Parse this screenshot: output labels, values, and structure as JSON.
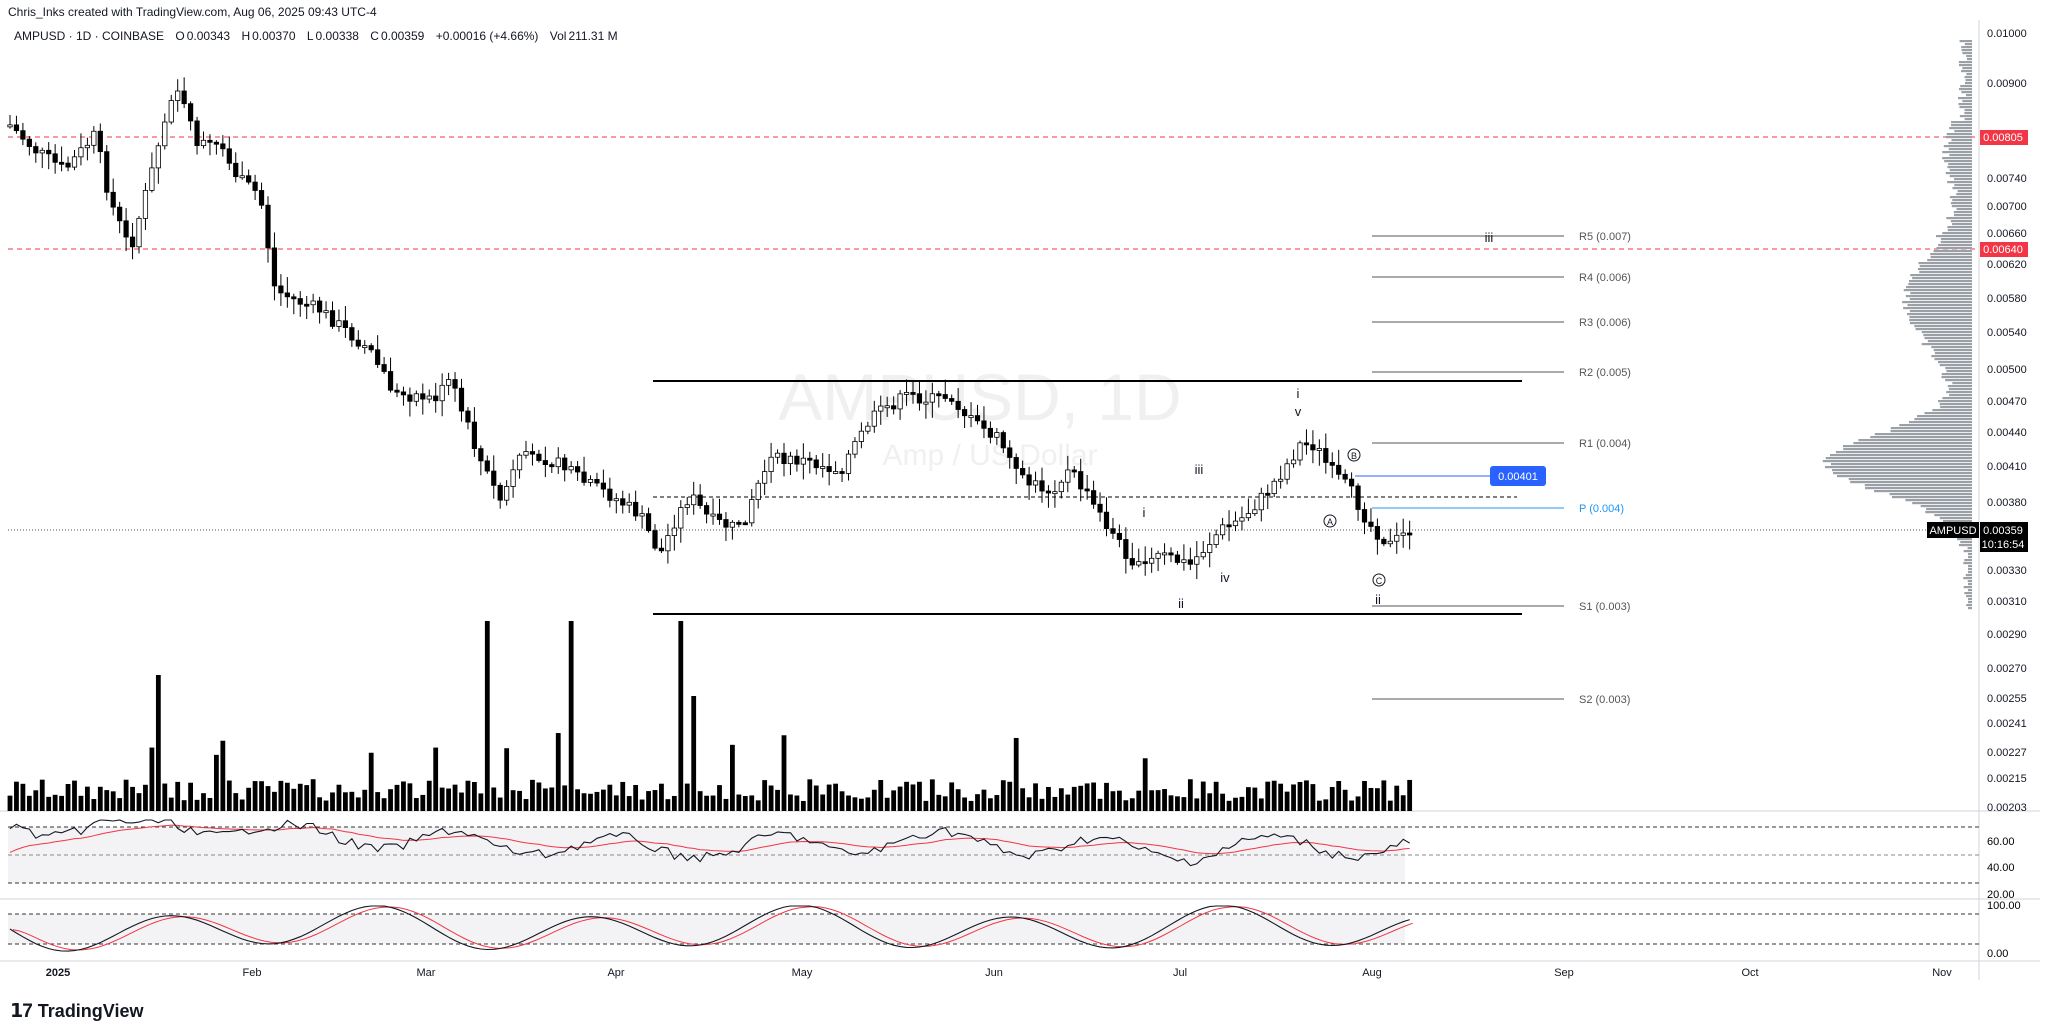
{
  "header": {
    "credit": "Chris_Inks created with TradingView.com, Aug 06, 2025 09:43 UTC-4"
  },
  "symbol_bar": {
    "title": "AMPUSD · 1D · COINBASE",
    "open_label": "O",
    "open": "0.00343",
    "high_label": "H",
    "high": "0.00370",
    "low_label": "L",
    "low": "0.00338",
    "close_label": "C",
    "close": "0.00359",
    "change": "+0.00016 (+4.66%)",
    "vol_label": "Vol",
    "vol": "211.31 M"
  },
  "watermark": {
    "symbol": "AMPUSD, 1D",
    "name": "Amp / US Dollar"
  },
  "price_axis": {
    "ticks": [
      "0.01000",
      "0.00900",
      "0.00805",
      "0.00740",
      "0.00700",
      "0.00660",
      "0.00640",
      "0.00620",
      "0.00580",
      "0.00540",
      "0.00500",
      "0.00470",
      "0.00440",
      "0.00410",
      "0.00380",
      "0.00359",
      "0.00330",
      "0.00310",
      "0.00290",
      "0.00270",
      "0.00255",
      "0.00241",
      "0.00227",
      "0.00215",
      "0.00203"
    ],
    "current_symbol": "AMPUSD",
    "current_price": "0.00359",
    "countdown": "10:16:54",
    "alert_high": "0.00805",
    "alert_mid": "0.00640"
  },
  "pivots": [
    {
      "label": "R5 (0.007)"
    },
    {
      "label": "R4 (0.006)"
    },
    {
      "label": "R3 (0.006)"
    },
    {
      "label": "R2 (0.005)"
    },
    {
      "label": "R1 (0.004)"
    },
    {
      "label": "P (0.004)"
    },
    {
      "label": "S1 (0.003)"
    },
    {
      "label": "S2 (0.003)"
    }
  ],
  "price_tag": "0.00401",
  "wave_labels": {
    "iii_top": "iii",
    "i_top": "i",
    "v": "v",
    "iii": "iii",
    "i": "i",
    "iv": "iv",
    "ii_a": "ii",
    "ii_b": "ii",
    "A": "A",
    "B": "B",
    "C": "C"
  },
  "rsi": {
    "ticks": [
      "60.00",
      "40.00",
      "20.00"
    ]
  },
  "stoch": {
    "ticks": [
      "100.00",
      "0.00"
    ]
  },
  "time_axis": [
    "2025",
    "Feb",
    "Mar",
    "Apr",
    "May",
    "Jun",
    "Jul",
    "Aug",
    "Sep",
    "Oct",
    "Nov"
  ],
  "footer": {
    "brand": "TradingView"
  },
  "colors": {
    "up": "#ffffff",
    "down": "#000000",
    "alert": "#f23645",
    "pivot_p": "#2196f3",
    "rsi_ma": "#f23645"
  }
}
